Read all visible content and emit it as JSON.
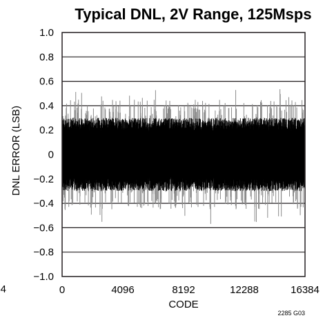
{
  "chart_data": {
    "type": "line",
    "title": "Typical DNL, 2V Range, 125Msps",
    "xlabel": "CODE",
    "ylabel": "DNL ERROR (LSB)",
    "xlim": [
      0,
      16384
    ],
    "ylim": [
      -1.0,
      1.0
    ],
    "x_ticks": [
      "0",
      "4096",
      "8192",
      "12288",
      "16384"
    ],
    "x_tick_values": [
      0,
      4096,
      8192,
      12288,
      16384
    ],
    "y_ticks": [
      "1.0",
      "0.8",
      "0.6",
      "0.4",
      "0.2",
      "0",
      "−0.2",
      "−0.4",
      "−0.6",
      "−0.8",
      "−1.0"
    ],
    "y_tick_values": [
      1.0,
      0.8,
      0.6,
      0.4,
      0.2,
      0,
      -0.2,
      -0.4,
      -0.6,
      -0.8,
      -1.0
    ],
    "grid": "horizontal",
    "footnote": "2285 G03",
    "stray_left_label": "4",
    "envelope": {
      "core_band": [
        -0.25,
        0.25
      ],
      "typical_peaks": [
        -0.45,
        0.45
      ],
      "max_peaks": [
        -0.58,
        0.56
      ]
    },
    "series": [
      {
        "color": "#000000",
        "peak_color": "#8a8a8a"
      }
    ]
  }
}
